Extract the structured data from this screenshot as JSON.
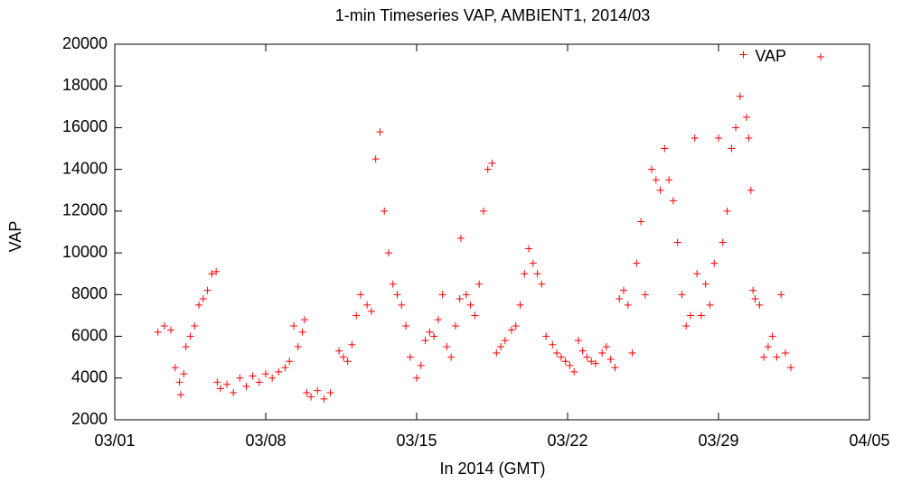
{
  "chart_data": {
    "type": "scatter",
    "title": "1-min Timeseries VAP, AMBIENT1, 2014/03",
    "xlabel": "In 2014 (GMT)",
    "ylabel": "VAP",
    "xlim": [
      0,
      35
    ],
    "xticks": [
      {
        "value": 0,
        "label": "03/01"
      },
      {
        "value": 7,
        "label": "03/08"
      },
      {
        "value": 14,
        "label": "03/15"
      },
      {
        "value": 21,
        "label": "03/22"
      },
      {
        "value": 28,
        "label": "03/29"
      },
      {
        "value": 35,
        "label": "04/05"
      }
    ],
    "ylim": [
      2000,
      20000
    ],
    "yticks": [
      2000,
      4000,
      6000,
      8000,
      10000,
      12000,
      14000,
      16000,
      18000,
      20000
    ],
    "legend": "top-right",
    "marker": "+",
    "series": [
      {
        "name": "VAP",
        "color": "#ff0000",
        "x": [
          2.0,
          2.3,
          2.6,
          2.8,
          3.0,
          3.06,
          3.2,
          3.3,
          3.5,
          3.7,
          3.9,
          4.1,
          4.3,
          4.5,
          4.7,
          4.75,
          4.9,
          5.2,
          5.5,
          5.8,
          6.1,
          6.4,
          6.7,
          7.0,
          7.3,
          7.6,
          7.9,
          8.1,
          8.3,
          8.5,
          8.7,
          8.8,
          8.9,
          9.1,
          9.4,
          9.7,
          10.0,
          10.4,
          10.6,
          10.8,
          11.0,
          11.2,
          11.4,
          11.7,
          11.9,
          12.1,
          12.3,
          12.5,
          12.7,
          12.9,
          13.1,
          13.3,
          13.5,
          13.7,
          14.0,
          14.2,
          14.4,
          14.6,
          14.8,
          15.0,
          15.2,
          15.4,
          15.6,
          15.8,
          16.0,
          16.05,
          16.3,
          16.5,
          16.7,
          16.9,
          17.1,
          17.3,
          17.5,
          17.7,
          17.9,
          18.1,
          18.4,
          18.6,
          18.8,
          19.0,
          19.2,
          19.4,
          19.6,
          19.8,
          20.0,
          20.3,
          20.5,
          20.7,
          20.9,
          21.1,
          21.3,
          21.5,
          21.7,
          21.9,
          22.1,
          22.3,
          22.6,
          22.8,
          23.0,
          23.2,
          23.4,
          23.6,
          23.8,
          24.0,
          24.2,
          24.4,
          24.6,
          24.9,
          25.1,
          25.3,
          25.5,
          25.7,
          25.9,
          26.1,
          26.3,
          26.5,
          26.7,
          26.9,
          27.0,
          27.2,
          27.4,
          27.6,
          27.8,
          28.0,
          28.2,
          28.4,
          28.6,
          28.8,
          29.0,
          29.15,
          29.3,
          29.4,
          29.5,
          29.6,
          29.7,
          29.9,
          30.1,
          30.3,
          30.5,
          30.7,
          30.9,
          31.1,
          31.35
        ],
        "values": [
          6200,
          6500,
          6300,
          4500,
          3800,
          3200,
          4200,
          5500,
          6000,
          6500,
          7500,
          7800,
          8200,
          9000,
          9100,
          3800,
          3500,
          3700,
          3300,
          4000,
          3600,
          4100,
          3800,
          4200,
          4000,
          4300,
          4500,
          4800,
          6500,
          5500,
          6200,
          6800,
          3300,
          3100,
          3400,
          3000,
          3300,
          5300,
          5000,
          4800,
          5600,
          7000,
          8000,
          7500,
          7200,
          14500,
          15800,
          12000,
          10000,
          8500,
          8000,
          7500,
          6500,
          5000,
          4000,
          4600,
          5800,
          6200,
          6000,
          6800,
          8000,
          5500,
          5000,
          6500,
          7800,
          10700,
          8000,
          7500,
          7000,
          8500,
          12000,
          14000,
          14300,
          5200,
          5500,
          5800,
          6300,
          6500,
          7500,
          9000,
          10200,
          9500,
          9000,
          8500,
          6000,
          5600,
          5200,
          5000,
          4800,
          4600,
          4300,
          5800,
          5300,
          5000,
          4800,
          4700,
          5200,
          5500,
          4900,
          4500,
          7800,
          8200,
          7500,
          5200,
          9500,
          11500,
          8000,
          14000,
          13500,
          13000,
          15000,
          13500,
          12500,
          10500,
          8000,
          6500,
          7000,
          15500,
          9000,
          7000,
          8500,
          7500,
          9500,
          15500,
          10500,
          12000,
          15000,
          16000,
          17500,
          19500,
          16500,
          15500,
          13000,
          8200,
          7800,
          7500,
          5000,
          5500,
          6000,
          5000,
          8000,
          5200,
          4500
        ]
      }
    ]
  }
}
